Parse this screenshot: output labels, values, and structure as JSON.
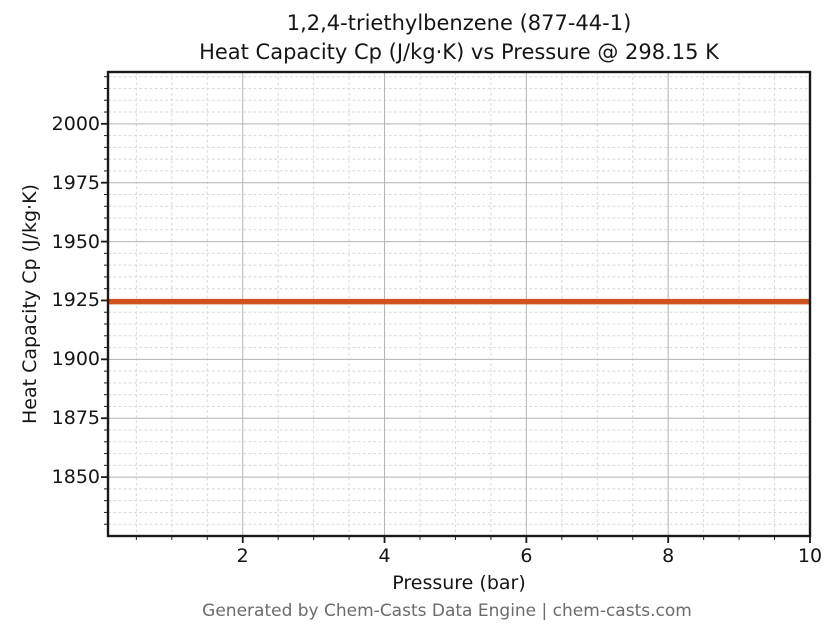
{
  "figure": {
    "footer": "Generated by Chem-Casts Data Engine | chem-casts.com"
  },
  "chart_data": {
    "type": "line",
    "title_lines": [
      "1,2,4-triethylbenzene (877-44-1)",
      "Heat Capacity Cp (J/kg·K) vs Pressure @ 298.15 K"
    ],
    "xlabel": "Pressure (bar)",
    "ylabel": "Heat Capacity Cp (J/kg·K)",
    "xlim": [
      0.1,
      10
    ],
    "ylim": [
      1825,
      2022
    ],
    "x_ticks": [
      2,
      4,
      6,
      8,
      10
    ],
    "y_ticks": [
      1850,
      1875,
      1900,
      1925,
      1950,
      1975,
      2000
    ],
    "x_major_step": 2,
    "y_major_step": 25,
    "x_minor_step": 0.5,
    "y_minor_step": 5,
    "grid": {
      "major": true,
      "minor": true
    },
    "legend": "none",
    "series": [
      {
        "name": "Heat Capacity Cp",
        "x": [
          0.1,
          10
        ],
        "y": [
          1924.5,
          1924.5
        ],
        "color": "#d2521e",
        "linewidth": 5.5
      }
    ],
    "colors": {
      "major_grid": "#b3b3b3",
      "minor_grid": "#d8d8d8",
      "spine": "#1a1a1a",
      "text": "#151515",
      "footer_text": "#6b6b6b"
    }
  }
}
